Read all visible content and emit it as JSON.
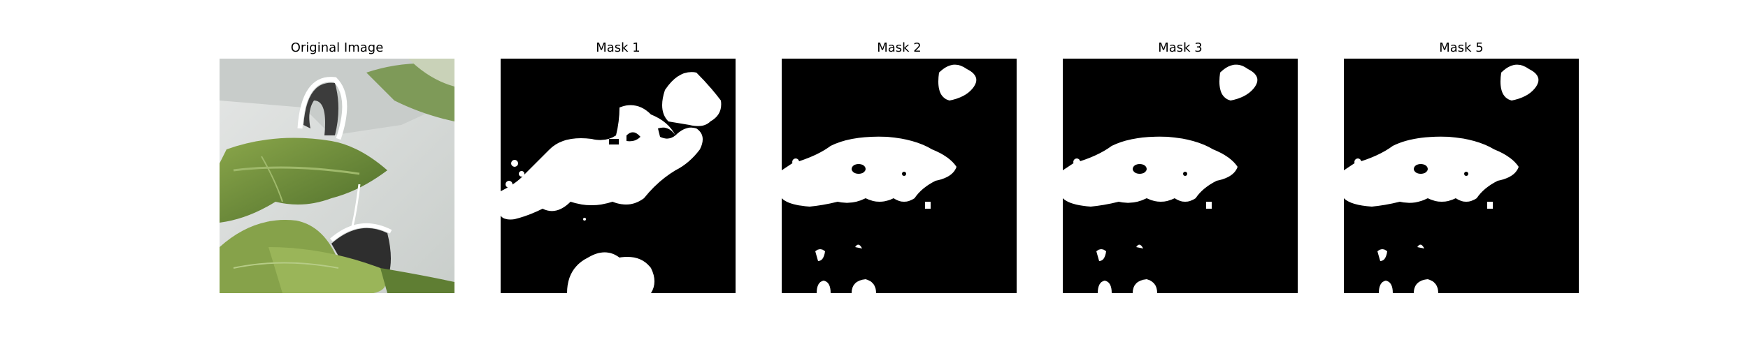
{
  "figure": {
    "panels": [
      {
        "title": "Original Image",
        "kind": "photo"
      },
      {
        "title": "Mask 1",
        "kind": "mask"
      },
      {
        "title": "Mask 2",
        "kind": "mask"
      },
      {
        "title": "Mask 3",
        "kind": "mask"
      },
      {
        "title": "Mask 5",
        "kind": "mask"
      }
    ]
  },
  "colors": {
    "mask_background": "#000000",
    "mask_foreground": "#ffffff",
    "photo_wall": "#d7dbd8",
    "photo_leaf": "#6f8f3c",
    "photo_leaf_dark": "#3f5f22"
  }
}
